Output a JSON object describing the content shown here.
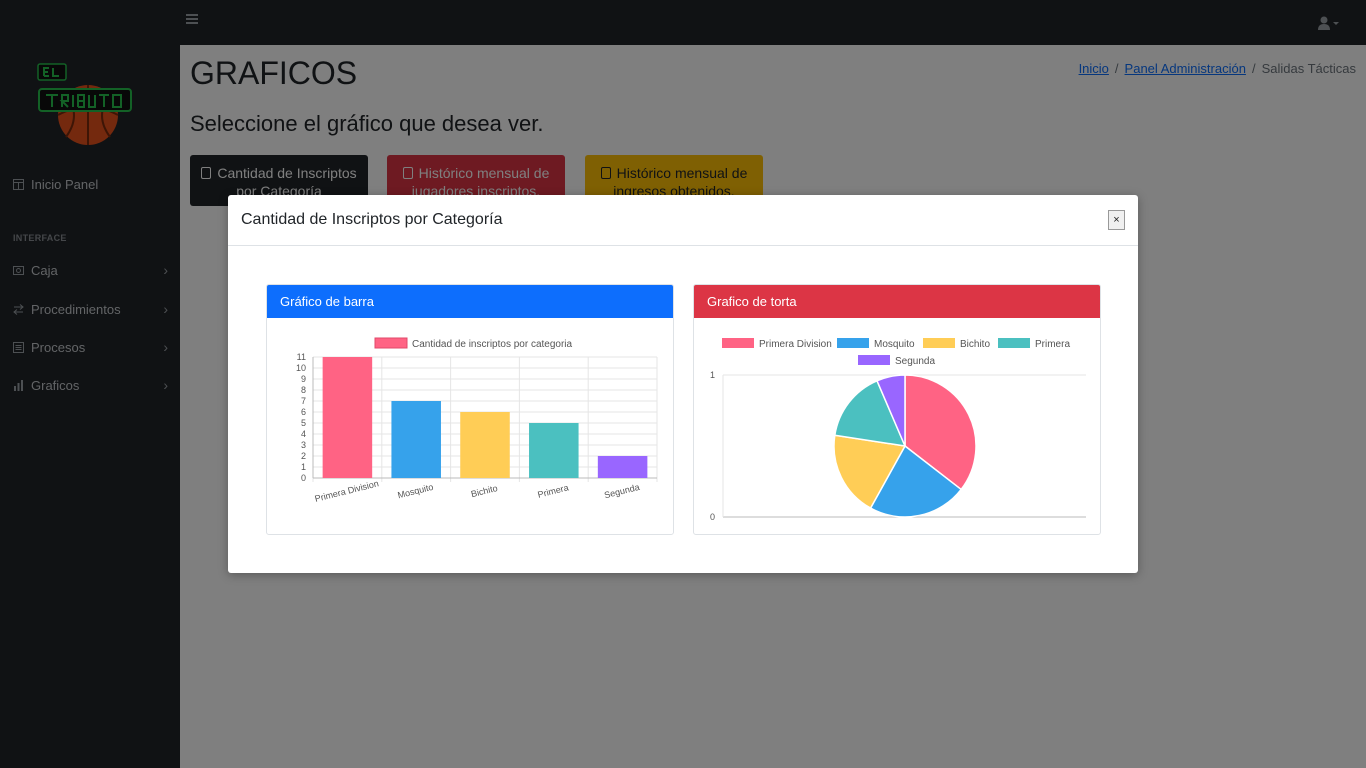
{
  "sidebar": {
    "logo_text": "EL TRIBUTO",
    "items": [
      {
        "label": "Inicio Panel"
      },
      {
        "label": "Caja"
      },
      {
        "label": "Procedimientos"
      },
      {
        "label": "Procesos"
      },
      {
        "label": "Graficos"
      }
    ],
    "heading": "INTERFACE"
  },
  "page": {
    "title": "GRAFICOS",
    "subtitle": "Seleccione el gráfico que desea ver.",
    "breadcrumb": {
      "home": "Inicio",
      "admin": "Panel Administración",
      "current": "Salidas Tácticas",
      "separator": "/"
    }
  },
  "buttons": {
    "inscriptos": "Cantidad de Inscriptos por Categoría",
    "jugadores": "Histórico mensual de jugadores inscriptos.",
    "ingresos": "Histórico mensual de ingresos obtenidos."
  },
  "modal": {
    "title": "Cantidad de Inscriptos por Categoría",
    "close": "×",
    "bar_card_title": "Gráfico de barra",
    "pie_card_title": "Grafico de torta"
  },
  "colors": {
    "primary": "#0d6efd",
    "danger": "#dc3545",
    "warning": "#ffc107",
    "dark": "#212529"
  },
  "chart_data": [
    {
      "type": "bar",
      "categories": [
        "Primera Division",
        "Mosquito",
        "Bichito",
        "Primera",
        "Segunda"
      ],
      "series": [
        {
          "name": "Cantidad de inscriptos por categoria",
          "values": [
            11,
            7,
            6,
            5,
            2
          ]
        }
      ],
      "colors": [
        "#ff6384",
        "#36a2eb",
        "#ffcd56",
        "#4bc0c0",
        "#9966ff"
      ],
      "ylim": [
        0,
        11
      ],
      "yticks": [
        0,
        1,
        2,
        3,
        4,
        5,
        6,
        7,
        8,
        9,
        10,
        11
      ],
      "legend": "top",
      "grid": true
    },
    {
      "type": "pie",
      "labels": [
        "Primera Division",
        "Mosquito",
        "Bichito",
        "Primera",
        "Segunda"
      ],
      "values": [
        11,
        7,
        6,
        5,
        2
      ],
      "colors": [
        "#ff6384",
        "#36a2eb",
        "#ffcd56",
        "#4bc0c0",
        "#9966ff"
      ],
      "axis_ticks": [
        "1",
        "0"
      ],
      "legend": "top"
    }
  ]
}
